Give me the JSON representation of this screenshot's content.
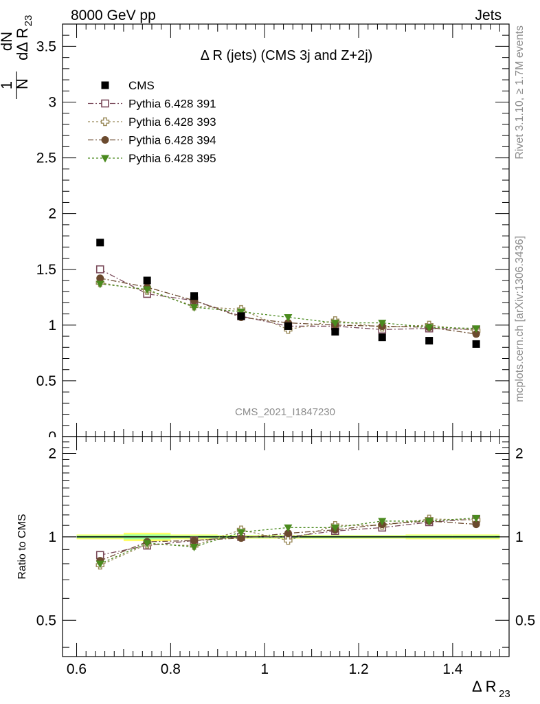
{
  "header": {
    "left": "8000 GeV pp",
    "right": "Jets"
  },
  "side": {
    "rivet": "Rivet 3.1.10, ≥ 1.7M events",
    "mcplots": "mcplots.cern.ch [arXiv:1306.3436]"
  },
  "colors": {
    "cms": "#000000",
    "p391": "#7a4a5a",
    "p393": "#9a8a5a",
    "p394": "#6b4a2e",
    "p395": "#4a8a1e",
    "band_green": "#9aff9a",
    "band_yellow": "#ffff66"
  },
  "chart_data": {
    "type": "scatter",
    "title": "Δ R (jets) (CMS 3j and Z+2j)",
    "analysis_label": "CMS_2021_I1847230",
    "xlabel": "Δ R23",
    "ylabel": "1/N dN/dΔ R23",
    "ratio_ylabel": "Ratio to CMS",
    "xlim": [
      0.57,
      1.52
    ],
    "ylim": [
      0,
      3.7
    ],
    "ratio_ylim": [
      0.37,
      2.3
    ],
    "ratio_scale": "log",
    "xticks": [
      "0.6",
      "0.8",
      "1",
      "1.2",
      "1.4"
    ],
    "yticks": [
      "0.5",
      "1",
      "1.5",
      "2",
      "2.5",
      "3",
      "3.5"
    ],
    "ratio_yticks": [
      "0.5",
      "1",
      "2"
    ],
    "legend_position": "top-left",
    "grid": false,
    "x": [
      0.65,
      0.75,
      0.85,
      0.95,
      1.05,
      1.15,
      1.25,
      1.35,
      1.45
    ],
    "series": [
      {
        "name": "CMS",
        "marker": "filled-square",
        "line": "none",
        "values": [
          1.74,
          1.4,
          1.26,
          1.08,
          0.99,
          0.94,
          0.89,
          0.86,
          0.83
        ]
      },
      {
        "name": "Pythia 6.428 391",
        "marker": "open-square",
        "line": "dash-dot",
        "values": [
          1.5,
          1.28,
          1.22,
          1.08,
          0.99,
          0.99,
          0.96,
          0.97,
          0.96
        ],
        "ratio": [
          0.86,
          0.93,
          0.97,
          1.0,
          1.0,
          1.05,
          1.08,
          1.13,
          1.16
        ]
      },
      {
        "name": "Pythia 6.428 393",
        "marker": "open-cross",
        "line": "dotted",
        "values": [
          1.38,
          1.31,
          1.17,
          1.14,
          0.96,
          1.04,
          0.98,
          1.0,
          0.95
        ],
        "ratio": [
          0.79,
          0.94,
          0.93,
          1.06,
          0.97,
          1.1,
          1.1,
          1.16,
          1.15
        ]
      },
      {
        "name": "Pythia 6.428 394",
        "marker": "filled-circle",
        "line": "dash-dot",
        "values": [
          1.42,
          1.34,
          1.22,
          1.07,
          1.02,
          1.0,
          0.99,
          0.98,
          0.92
        ],
        "ratio": [
          0.82,
          0.96,
          0.97,
          0.99,
          1.03,
          1.06,
          1.11,
          1.14,
          1.11
        ]
      },
      {
        "name": "Pythia 6.428 395",
        "marker": "filled-triangle-down",
        "line": "dotted",
        "values": [
          1.37,
          1.32,
          1.16,
          1.12,
          1.07,
          1.02,
          1.02,
          0.98,
          0.97
        ],
        "ratio": [
          0.8,
          0.95,
          0.92,
          1.04,
          1.08,
          1.08,
          1.14,
          1.14,
          1.17
        ]
      }
    ]
  }
}
